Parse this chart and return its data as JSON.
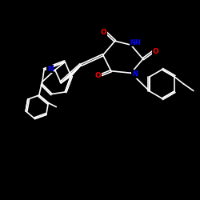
{
  "background": "#000000",
  "bond_color": "#ffffff",
  "O_color": "#ff0000",
  "N_color": "#0000ff",
  "figsize": [
    2.5,
    2.5
  ],
  "dpi": 100,
  "xlim": [
    0,
    10
  ],
  "ylim": [
    0,
    10
  ]
}
